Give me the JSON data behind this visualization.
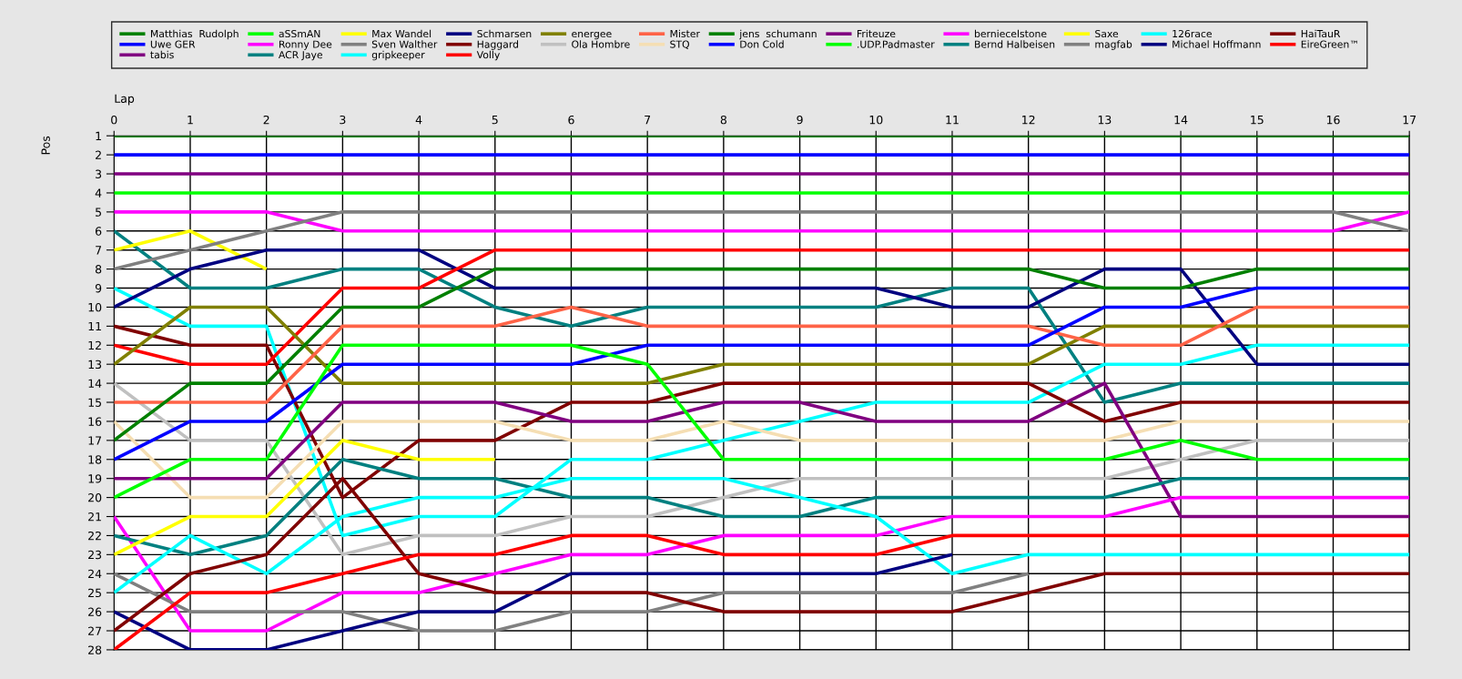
{
  "chart_data": {
    "type": "line",
    "xlabel": "Lap",
    "ylabel": "Pos",
    "legend": "top",
    "grid": true,
    "x": [
      0,
      1,
      2,
      3,
      4,
      5,
      6,
      7,
      8,
      9,
      10,
      11,
      12,
      13,
      14,
      15,
      16,
      17
    ],
    "xlim": [
      0,
      17
    ],
    "xticks": [
      0,
      1,
      2,
      3,
      4,
      5,
      6,
      7,
      8,
      9,
      10,
      11,
      12,
      13,
      14,
      15,
      16,
      17
    ],
    "ylim": [
      28,
      1
    ],
    "yticks": [
      1,
      2,
      3,
      4,
      5,
      6,
      7,
      8,
      9,
      10,
      11,
      12,
      13,
      14,
      15,
      16,
      17,
      18,
      19,
      20,
      21,
      22,
      23,
      24,
      25,
      26,
      27,
      28
    ],
    "series": [
      {
        "name": "Matthias  Rudolph",
        "color": "#008000",
        "values": [
          1,
          1,
          1,
          1,
          1,
          1,
          1,
          1,
          1,
          1,
          1,
          1,
          1,
          1,
          1,
          1,
          1,
          1
        ]
      },
      {
        "name": "Uwe GER",
        "color": "#0000ff",
        "values": [
          2,
          2,
          2,
          2,
          2,
          2,
          2,
          2,
          2,
          2,
          2,
          2,
          2,
          2,
          2,
          2,
          2,
          2
        ]
      },
      {
        "name": "tabis",
        "color": "#800080",
        "values": [
          3,
          3,
          3,
          3,
          3,
          3,
          3,
          3,
          3,
          3,
          3,
          3,
          3,
          3,
          3,
          3,
          3,
          3
        ]
      },
      {
        "name": "aSSmAN",
        "color": "#00ff00",
        "values": [
          4,
          4,
          4,
          4,
          4,
          4,
          4,
          4,
          4,
          4,
          4,
          4,
          4,
          4,
          4,
          4,
          4,
          4
        ]
      },
      {
        "name": "Ronny Dee",
        "color": "#ff00ff",
        "values": [
          5,
          5,
          5,
          6,
          6,
          6,
          6,
          6,
          6,
          6,
          6,
          6,
          6,
          6,
          6,
          6,
          6,
          5
        ]
      },
      {
        "name": "ACR Jaye",
        "color": "#008080",
        "values": [
          6,
          9,
          9,
          8,
          8,
          10,
          11,
          10,
          10,
          10,
          10,
          9,
          9,
          15,
          14,
          14,
          14,
          14
        ]
      },
      {
        "name": "Max Wandel",
        "color": "#ffff00",
        "values": [
          7,
          6,
          8,
          null,
          null,
          null,
          null,
          null,
          null,
          null,
          null,
          null,
          null,
          null,
          null,
          null,
          null,
          null
        ]
      },
      {
        "name": "Sven Walther",
        "color": "#808080",
        "values": [
          8,
          7,
          6,
          5,
          5,
          5,
          5,
          5,
          5,
          5,
          5,
          5,
          5,
          5,
          5,
          5,
          5,
          6
        ]
      },
      {
        "name": "gripkeeper",
        "color": "#00ffff",
        "values": [
          9,
          11,
          11,
          22,
          21,
          21,
          18,
          18,
          17,
          16,
          15,
          15,
          15,
          13,
          13,
          12,
          12,
          12
        ]
      },
      {
        "name": "Schmarsen",
        "color": "#000080",
        "values": [
          10,
          8,
          7,
          7,
          7,
          9,
          9,
          9,
          9,
          9,
          9,
          10,
          10,
          8,
          8,
          13,
          13,
          13
        ]
      },
      {
        "name": "Haggard",
        "color": "#800000",
        "values": [
          11,
          12,
          12,
          20,
          17,
          17,
          15,
          15,
          14,
          14,
          14,
          14,
          14,
          16,
          15,
          15,
          15,
          15
        ]
      },
      {
        "name": "Volly",
        "color": "#ff0000",
        "values": [
          12,
          13,
          13,
          9,
          9,
          7,
          7,
          7,
          7,
          7,
          7,
          7,
          7,
          7,
          7,
          7,
          7,
          7
        ]
      },
      {
        "name": "energee",
        "color": "#808000",
        "values": [
          13,
          10,
          10,
          14,
          14,
          14,
          14,
          14,
          13,
          13,
          13,
          13,
          13,
          11,
          11,
          11,
          11,
          11
        ]
      },
      {
        "name": "Ola Hombre",
        "color": "#c0c0c0",
        "values": [
          14,
          17,
          17,
          23,
          22,
          22,
          21,
          21,
          20,
          19,
          19,
          19,
          19,
          19,
          18,
          17,
          17,
          17
        ]
      },
      {
        "name": "Mister",
        "color": "#ff6347",
        "values": [
          15,
          15,
          15,
          11,
          11,
          11,
          10,
          11,
          11,
          11,
          11,
          11,
          11,
          12,
          12,
          10,
          10,
          10
        ]
      },
      {
        "name": "STQ",
        "color": "#f5deb3",
        "values": [
          16,
          20,
          20,
          16,
          16,
          16,
          17,
          17,
          16,
          17,
          17,
          17,
          17,
          17,
          16,
          16,
          16,
          16
        ]
      },
      {
        "name": "jens  schumann",
        "color": "#008000",
        "values": [
          17,
          14,
          14,
          10,
          10,
          8,
          8,
          8,
          8,
          8,
          8,
          8,
          8,
          9,
          9,
          8,
          8,
          8
        ]
      },
      {
        "name": "Don Cold",
        "color": "#0000ff",
        "values": [
          18,
          16,
          16,
          13,
          13,
          13,
          13,
          12,
          12,
          12,
          12,
          12,
          12,
          10,
          10,
          9,
          9,
          9
        ]
      },
      {
        "name": "Friteuze",
        "color": "#800080",
        "values": [
          19,
          19,
          19,
          15,
          15,
          15,
          16,
          16,
          15,
          15,
          16,
          16,
          16,
          14,
          21,
          21,
          21,
          21
        ]
      },
      {
        "name": ".UDP.Padmaster",
        "color": "#00ff00",
        "values": [
          20,
          18,
          18,
          12,
          12,
          12,
          12,
          13,
          18,
          18,
          18,
          18,
          18,
          18,
          17,
          18,
          18,
          18
        ]
      },
      {
        "name": "berniecelstone",
        "color": "#ff00ff",
        "values": [
          21,
          27,
          27,
          25,
          25,
          24,
          23,
          23,
          22,
          22,
          22,
          21,
          21,
          21,
          20,
          20,
          20,
          20
        ]
      },
      {
        "name": "Bernd Halbeisen",
        "color": "#008080",
        "values": [
          22,
          23,
          22,
          18,
          19,
          19,
          20,
          20,
          21,
          21,
          20,
          20,
          20,
          20,
          19,
          19,
          19,
          19
        ]
      },
      {
        "name": "Saxe",
        "color": "#ffff00",
        "values": [
          23,
          21,
          21,
          17,
          18,
          18,
          null,
          null,
          null,
          null,
          null,
          null,
          null,
          null,
          null,
          null,
          null,
          null
        ]
      },
      {
        "name": "magfab",
        "color": "#808080",
        "values": [
          24,
          26,
          26,
          26,
          27,
          27,
          26,
          26,
          25,
          25,
          25,
          25,
          24,
          null,
          null,
          null,
          null,
          null
        ]
      },
      {
        "name": "126race",
        "color": "#00ffff",
        "values": [
          25,
          22,
          24,
          21,
          20,
          20,
          19,
          19,
          19,
          20,
          21,
          24,
          23,
          23,
          23,
          23,
          23,
          23
        ]
      },
      {
        "name": "Michael Hoffmann",
        "color": "#000080",
        "values": [
          26,
          28,
          28,
          27,
          26,
          26,
          24,
          24,
          24,
          24,
          24,
          23,
          null,
          null,
          null,
          null,
          null,
          null
        ]
      },
      {
        "name": "HaiTauR",
        "color": "#800000",
        "values": [
          27,
          24,
          23,
          19,
          24,
          25,
          25,
          25,
          26,
          26,
          26,
          26,
          25,
          24,
          24,
          24,
          24,
          24
        ]
      },
      {
        "name": "EireGreen™",
        "color": "#ff0000",
        "values": [
          28,
          25,
          25,
          24,
          23,
          23,
          22,
          22,
          23,
          23,
          23,
          22,
          22,
          22,
          22,
          22,
          22,
          22
        ]
      }
    ]
  }
}
